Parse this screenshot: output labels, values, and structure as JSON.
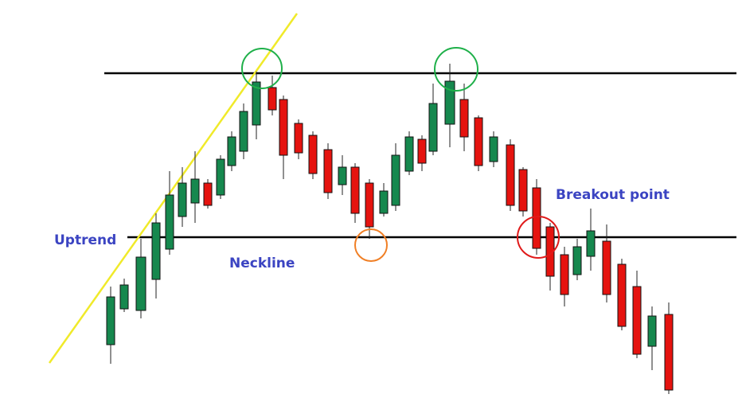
{
  "labels": {
    "uptrend": "Uptrend",
    "neckline": "Neckline",
    "breakout": "Breakout point"
  }
}
